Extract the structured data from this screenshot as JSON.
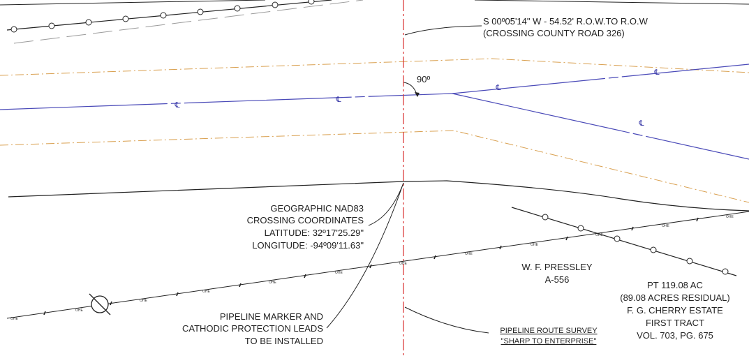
{
  "crossing_bearing": {
    "line1": "S 00º05'14\" W - 54.52' R.O.W.TO R.O.W",
    "line2": "(CROSSING COUNTY ROAD 326)"
  },
  "angle_label": "90º",
  "centerline_symbol": "℄",
  "overhead_electric_symbol": "OHE",
  "coordinates": {
    "line1": "GEOGRAPHIC NAD83",
    "line2": "CROSSING COORDINATES",
    "latitude": "LATITUDE: 32º17'25.29\"",
    "longitude": "LONGITUDE: -94º09'11.63\""
  },
  "marker_note": {
    "line1": "PIPELINE MARKER AND",
    "line2": "CATHODIC PROTECTION LEADS",
    "line3": "TO BE INSTALLED"
  },
  "survey_title": {
    "line1": "PIPELINE ROUTE SURVEY",
    "line2": "\"SHARP TO ENTERPRISE\""
  },
  "survey_abstract": {
    "line1": "W. F. PRESSLEY",
    "line2": "A-556"
  },
  "tract_info": {
    "line1": "PT 119.08 AC",
    "line2": "(89.08 ACRES RESIDUAL)",
    "line3": "F. G. CHERRY ESTATE",
    "line4": "FIRST TRACT",
    "line5": "VOL. 703, PG. 675"
  },
  "colors": {
    "centerline": "#4a4ab8",
    "easement": "#d9a050",
    "crossing_line": "#d93030",
    "linework": "#222222",
    "row_dashed": "#9a9a9a"
  }
}
